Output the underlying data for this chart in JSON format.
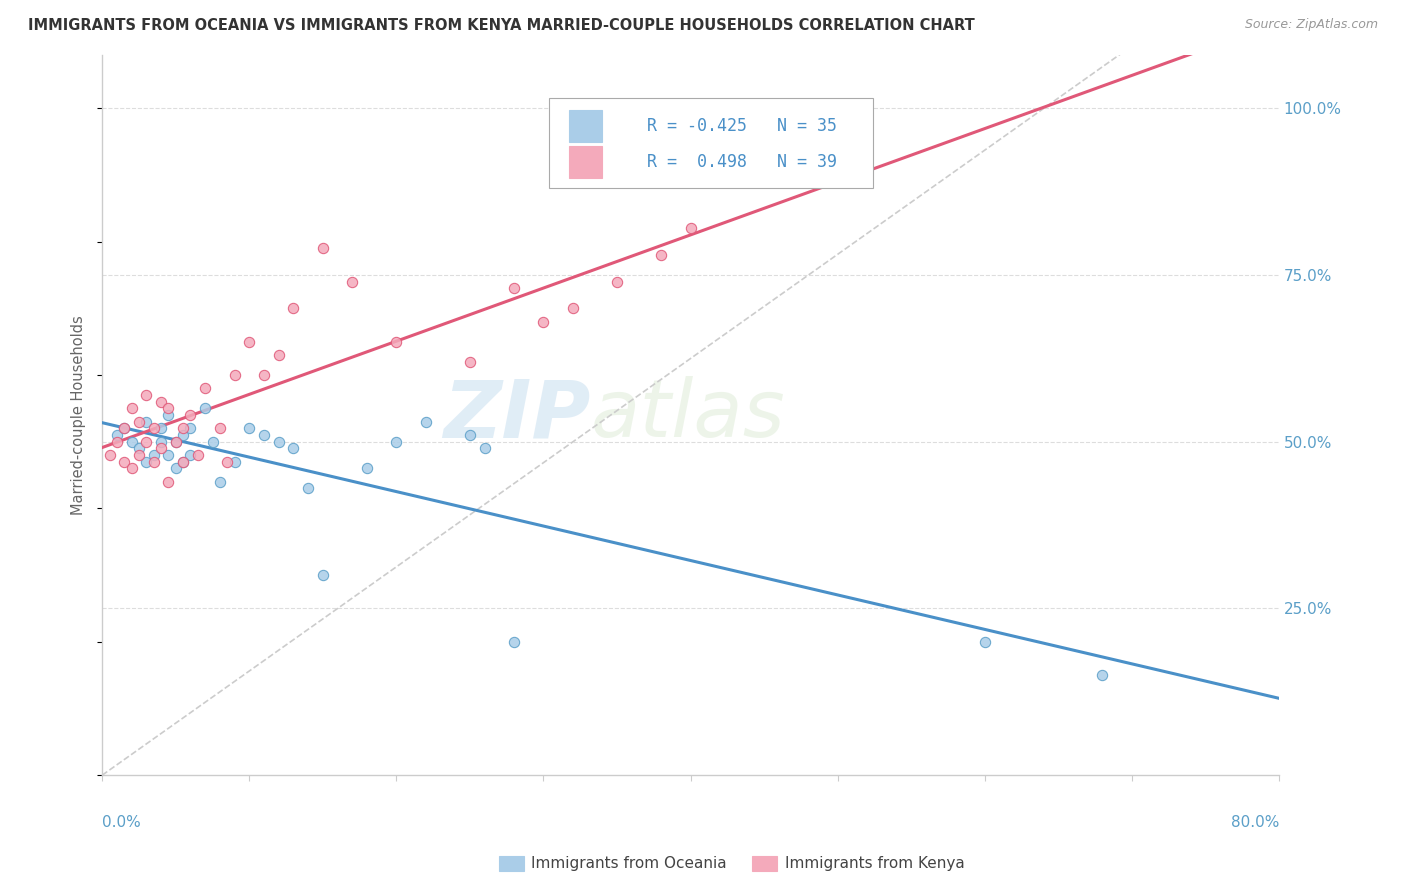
{
  "title": "IMMIGRANTS FROM OCEANIA VS IMMIGRANTS FROM KENYA MARRIED-COUPLE HOUSEHOLDS CORRELATION CHART",
  "source": "Source: ZipAtlas.com",
  "xmin": 0.0,
  "xmax": 80.0,
  "ymin": 0.0,
  "ymax": 100.0,
  "ylim_top": 108.0,
  "legend_oceania_r": -0.425,
  "legend_kenya_r": 0.498,
  "legend_oceania_n": 35,
  "legend_kenya_n": 39,
  "color_oceania_fill": "#AACDE8",
  "color_oceania_edge": "#5B9FC8",
  "color_kenya_fill": "#F4AABB",
  "color_kenya_edge": "#E05878",
  "color_line_oceania": "#4A90C8",
  "color_line_kenya": "#E05878",
  "color_ref_line": "#CCCCCC",
  "color_right_labels": "#5B9FC8",
  "color_axis_label": "#5B9FC8",
  "color_grid": "#DDDDDD",
  "color_title": "#333333",
  "color_source": "#999999",
  "scatter_oceania_x": [
    1.0,
    1.5,
    2.0,
    2.5,
    3.0,
    3.0,
    3.5,
    4.0,
    4.0,
    4.5,
    4.5,
    5.0,
    5.0,
    5.5,
    5.5,
    6.0,
    6.0,
    7.0,
    7.5,
    8.0,
    9.0,
    10.0,
    11.0,
    12.0,
    13.0,
    14.0,
    15.0,
    18.0,
    20.0,
    22.0,
    25.0,
    26.0,
    28.0,
    60.0,
    68.0
  ],
  "scatter_oceania_y": [
    51,
    52,
    50,
    49,
    53,
    47,
    48,
    52,
    50,
    54,
    48,
    50,
    46,
    51,
    47,
    52,
    48,
    55,
    50,
    44,
    47,
    52,
    51,
    50,
    49,
    43,
    30,
    46,
    50,
    53,
    51,
    49,
    20,
    20,
    15
  ],
  "scatter_kenya_x": [
    0.5,
    1.0,
    1.5,
    1.5,
    2.0,
    2.0,
    2.5,
    2.5,
    3.0,
    3.0,
    3.5,
    3.5,
    4.0,
    4.0,
    4.5,
    4.5,
    5.0,
    5.5,
    5.5,
    6.0,
    6.5,
    7.0,
    8.0,
    8.5,
    9.0,
    10.0,
    11.0,
    12.0,
    13.0,
    15.0,
    17.0,
    20.0,
    25.0,
    28.0,
    30.0,
    32.0,
    35.0,
    38.0,
    40.0
  ],
  "scatter_kenya_y": [
    48,
    50,
    52,
    47,
    55,
    46,
    53,
    48,
    57,
    50,
    52,
    47,
    56,
    49,
    55,
    44,
    50,
    52,
    47,
    54,
    48,
    58,
    52,
    47,
    60,
    65,
    60,
    63,
    70,
    79,
    74,
    65,
    62,
    73,
    68,
    70,
    74,
    78,
    82
  ],
  "bottom_legend_oceania": "Immigrants from Oceania",
  "bottom_legend_kenya": "Immigrants from Kenya",
  "watermark_part1": "ZIP",
  "watermark_part2": "atlas"
}
